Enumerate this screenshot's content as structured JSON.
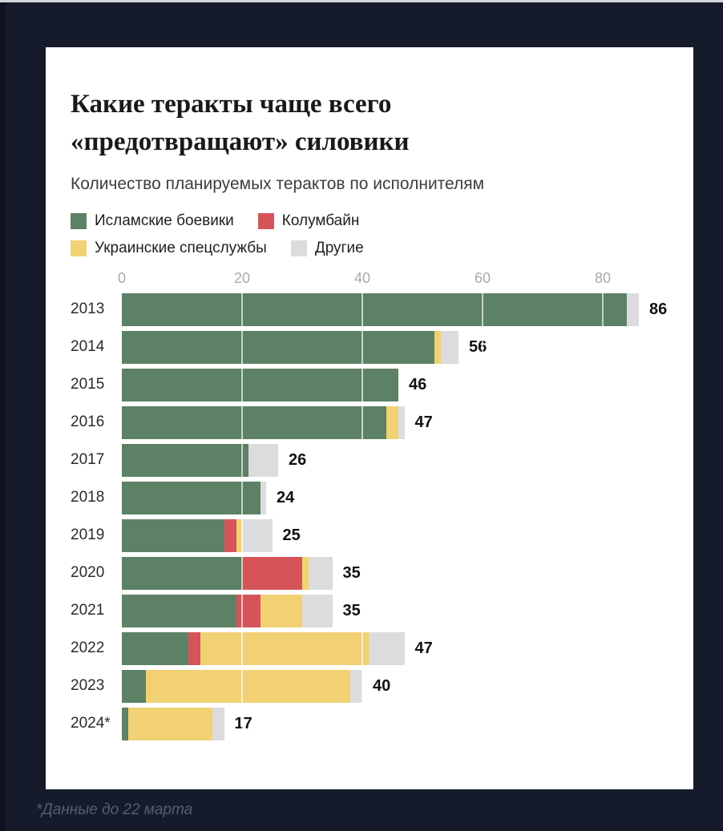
{
  "page": {
    "background_color": "#161b2b",
    "footnote": "*Данные до 22 марта"
  },
  "chart_data": {
    "type": "bar",
    "orientation": "horizontal",
    "stacked": true,
    "title": "Какие теракты чаще всего «предотвращают» силовики",
    "subtitle": "Количество планируемых терактов по исполнителям",
    "categories": [
      "2013",
      "2014",
      "2015",
      "2016",
      "2017",
      "2018",
      "2019",
      "2020",
      "2021",
      "2022",
      "2023",
      "2024*"
    ],
    "series": [
      {
        "name": "Исламские боевики",
        "color": "#5c8165",
        "values": [
          84,
          52,
          46,
          44,
          21,
          23,
          17,
          20,
          19,
          11,
          4,
          1
        ]
      },
      {
        "name": "Колумбайн",
        "color": "#d5545a",
        "values": [
          0,
          0,
          0,
          0,
          0,
          0,
          2,
          10,
          4,
          2,
          0,
          0
        ]
      },
      {
        "name": "Украинские спецслужбы",
        "color": "#f1d173",
        "values": [
          0,
          1,
          0,
          2,
          0,
          0,
          1,
          1,
          7,
          28,
          34,
          14
        ]
      },
      {
        "name": "Другие",
        "color": "#dcdcde",
        "values": [
          2,
          3,
          0,
          1,
          5,
          1,
          5,
          4,
          5,
          6,
          2,
          2
        ]
      }
    ],
    "totals": [
      86,
      56,
      46,
      47,
      26,
      24,
      25,
      35,
      35,
      47,
      40,
      17
    ],
    "x_ticks": [
      0,
      20,
      40,
      60,
      80
    ],
    "xlim": [
      0,
      88
    ],
    "legend_position": "top",
    "grid": true,
    "gridline_color": "rgba(255,255,255,0.65)"
  }
}
